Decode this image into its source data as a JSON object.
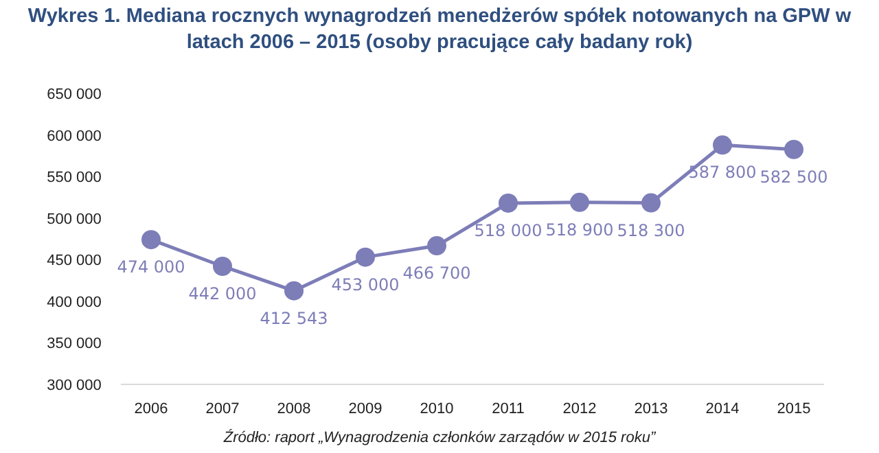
{
  "chart_data": {
    "type": "line",
    "title": "Wykres 1. Mediana rocznych wynagrodzeń menedżerów spółek notowanych na GPW w latach 2006 – 2015 (osoby pracujące cały badany rok)",
    "categories": [
      "2006",
      "2007",
      "2008",
      "2009",
      "2010",
      "2011",
      "2012",
      "2013",
      "2014",
      "2015"
    ],
    "series": [
      {
        "color": "#7d7db8",
        "values": [
          474000,
          442000,
          412543,
          453000,
          466700,
          518000,
          518900,
          518300,
          587800,
          582500
        ]
      }
    ],
    "ylim": [
      300000,
      650000
    ],
    "yticks": [
      {
        "value": 300000,
        "label": "300 000"
      },
      {
        "value": 350000,
        "label": "350 000"
      },
      {
        "value": 400000,
        "label": "400 000"
      },
      {
        "value": 450000,
        "label": "450 000"
      },
      {
        "value": 500000,
        "label": "500 000"
      },
      {
        "value": 550000,
        "label": "550 000"
      },
      {
        "value": 600000,
        "label": "600 000"
      },
      {
        "value": 650000,
        "label": "650 000"
      }
    ],
    "marker": "circle",
    "data_labels": true,
    "annotations": [
      "Źródło: raport „Wynagrodzenia członków zarządów w 2015 roku”"
    ]
  }
}
